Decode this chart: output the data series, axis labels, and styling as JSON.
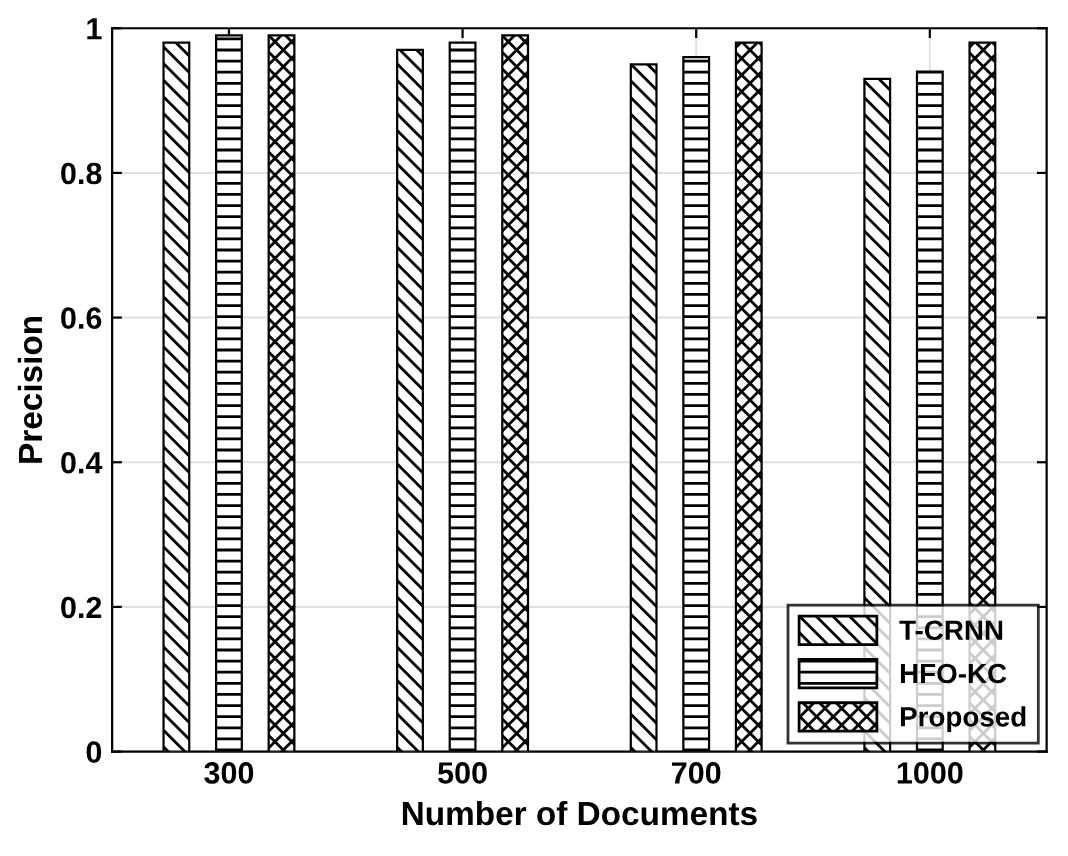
{
  "chart_data": {
    "type": "bar",
    "xlabel": "Number of Documents",
    "ylabel": "Precision",
    "categories": [
      "300",
      "500",
      "700",
      "1000"
    ],
    "series": [
      {
        "name": "T-CRNN",
        "color": "#000000",
        "values": [
          0.98,
          0.97,
          0.95,
          0.93
        ]
      },
      {
        "name": "HFO-KC",
        "color": "#000000",
        "values": [
          0.99,
          0.98,
          0.96,
          0.94
        ]
      },
      {
        "name": "Proposed",
        "color": "#000000",
        "values": [
          0.99,
          0.99,
          0.98,
          0.98
        ]
      }
    ],
    "ylim": [
      0,
      1
    ],
    "yticks": [
      0,
      0.2,
      0.4,
      0.6,
      0.8,
      {
        "value": 1,
        "label": "1"
      }
    ],
    "grid": true,
    "legend": "bottom right"
  }
}
